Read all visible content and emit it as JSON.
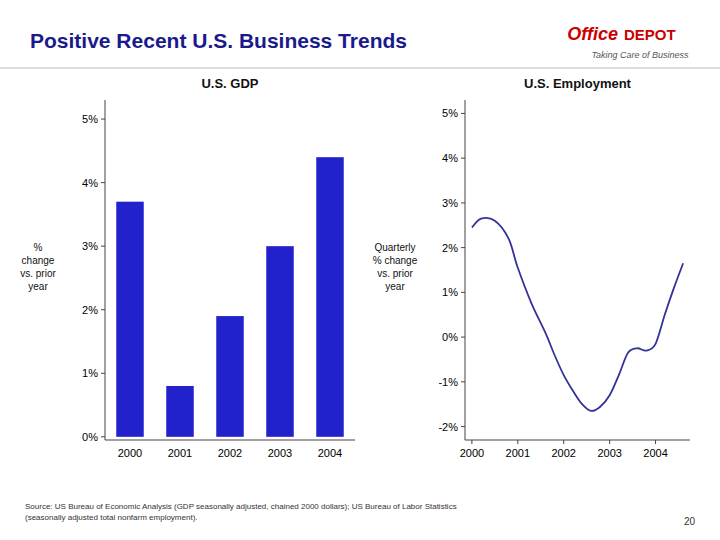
{
  "title": "Positive Recent U.S. Business Trends",
  "annotations": [
    "Office",
    "DEPOT",
    "Taking Care of Business",
    "Source: US Bureau of Economic Analysis (GDP seasonally adjusted, chained 2000 dollars); US Bureau of Labor Statistics\n(seasonally adjusted total nonfarm employment).",
    "20"
  ],
  "chart_data": [
    {
      "type": "bar",
      "title": "U.S. GDP",
      "ylabel": "%\nchange\nvs. prior\nyear",
      "categories": [
        "2000",
        "2001",
        "2002",
        "2003",
        "2004"
      ],
      "values": [
        3.7,
        0.8,
        1.9,
        3.0,
        4.4
      ],
      "color": "#2222cc",
      "ylim": [
        -0.05,
        5.3
      ],
      "yticks": [
        {
          "value": 0,
          "label": "0%"
        },
        {
          "value": 1,
          "label": "1%"
        },
        {
          "value": 2,
          "label": "2%"
        },
        {
          "value": 3,
          "label": "3%"
        },
        {
          "value": 4,
          "label": "4%"
        },
        {
          "value": 5,
          "label": "5%"
        }
      ],
      "grid": false
    },
    {
      "type": "line",
      "title": "U.S. Employment",
      "ylabel": "Quarterly\n% change\nvs. prior\nyear",
      "x": [
        2000.0,
        2000.2,
        2000.5,
        2000.8,
        2001.0,
        2001.3,
        2001.6,
        2001.8,
        2002.0,
        2002.2,
        2002.4,
        2002.6,
        2002.8,
        2003.0,
        2003.2,
        2003.4,
        2003.6,
        2003.8,
        2004.0,
        2004.2,
        2004.4,
        2004.6
      ],
      "values": [
        2.45,
        2.65,
        2.6,
        2.2,
        1.55,
        0.75,
        0.1,
        -0.4,
        -0.85,
        -1.2,
        -1.5,
        -1.65,
        -1.55,
        -1.3,
        -0.85,
        -0.35,
        -0.25,
        -0.3,
        -0.15,
        0.5,
        1.1,
        1.65
      ],
      "color": "#333399",
      "xlim": [
        1999.85,
        2004.75
      ],
      "xticks": [
        2000,
        2001,
        2002,
        2003,
        2004
      ],
      "ylim": [
        -2.3,
        5.3
      ],
      "yticks": [
        {
          "value": -2,
          "label": "-2%"
        },
        {
          "value": -1,
          "label": "-1%"
        },
        {
          "value": 0,
          "label": "0%"
        },
        {
          "value": 1,
          "label": "1%"
        },
        {
          "value": 2,
          "label": "2%"
        },
        {
          "value": 3,
          "label": "3%"
        },
        {
          "value": 4,
          "label": "4%"
        },
        {
          "value": 5,
          "label": "5%"
        }
      ],
      "grid": false
    }
  ]
}
